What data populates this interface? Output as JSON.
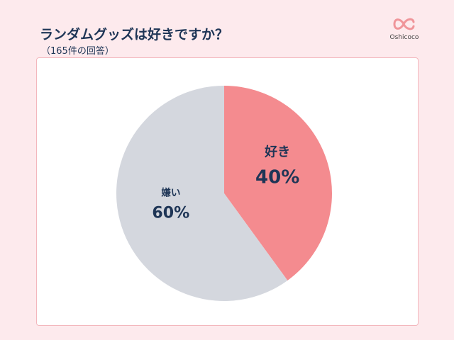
{
  "title": "ランダムグッズは好きですか？",
  "subtitle": "（165件の回答）",
  "logo": {
    "text": "Oshicoco",
    "color": "#f0959a"
  },
  "chart_data": {
    "type": "pie",
    "title": "ランダムグッズは好きですか？",
    "categories": [
      "好き",
      "嫌い"
    ],
    "values": [
      40,
      60
    ],
    "labels": [
      "40%",
      "60%"
    ],
    "colors": [
      "#f48b8f",
      "#d4d7de"
    ],
    "start": "top",
    "direction": "clockwise"
  }
}
